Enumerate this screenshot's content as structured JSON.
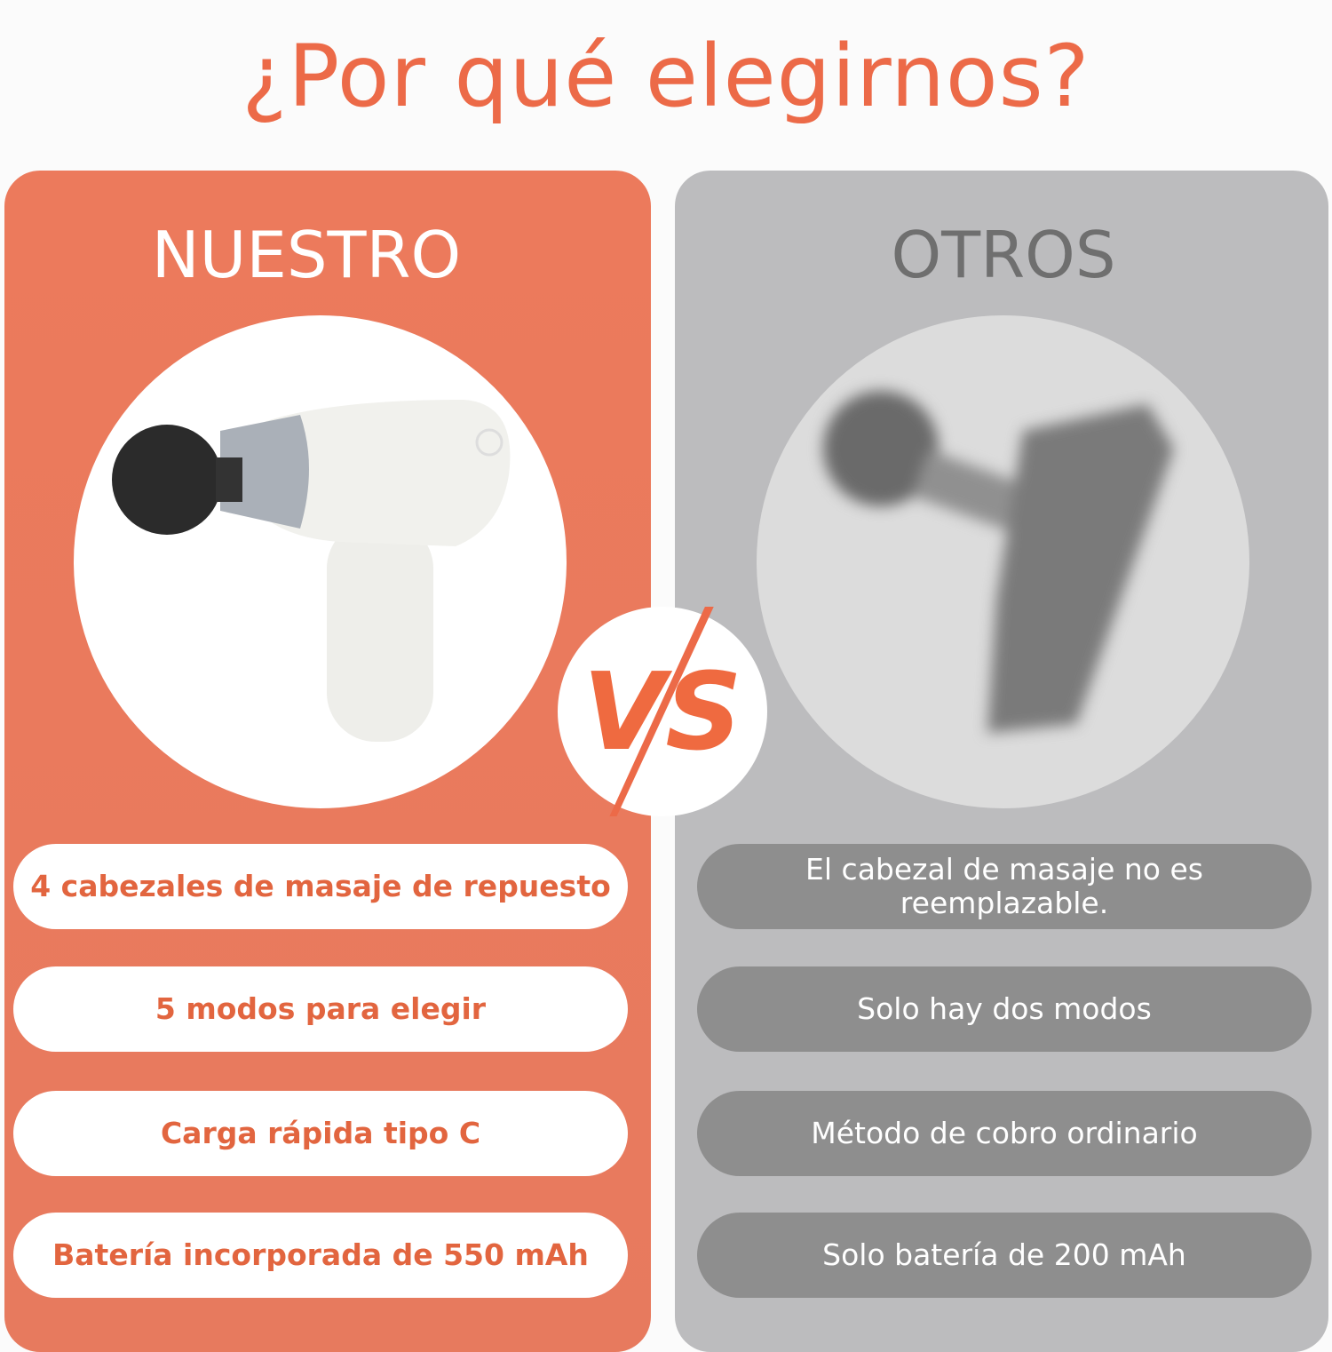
{
  "title": "¿Por qué elegirnos?",
  "colors": {
    "accent": "#ec6a48",
    "ours_panel": "#ea7a5e",
    "others_panel": "#bcbcbe"
  },
  "ours": {
    "heading": "NUESTRO",
    "features": [
      "4 cabezales de masaje de repuesto",
      "5 modos para elegir",
      "Carga rápida tipo C",
      "Batería incorporada de 550 mAh"
    ]
  },
  "others": {
    "heading": "OTROS",
    "features": [
      "El cabezal de masaje no es reemplazable.",
      "Solo hay dos modos",
      "Método de cobro ordinario",
      "Solo batería de 200 mAh"
    ]
  },
  "vs_label": "VS"
}
